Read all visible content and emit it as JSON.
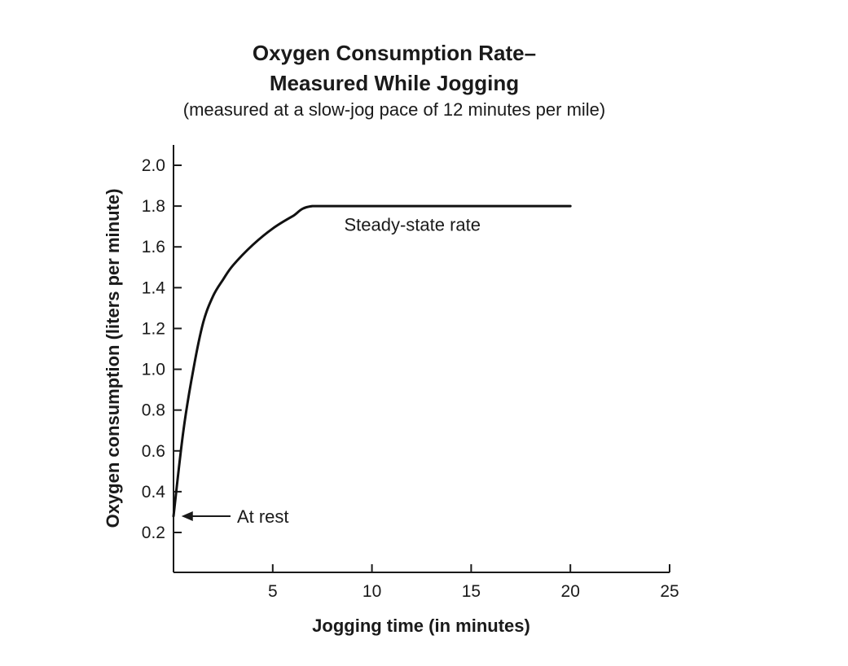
{
  "chart_data": {
    "type": "line",
    "title_line1": "Oxygen Consumption Rate–",
    "title_line2": "Measured While Jogging",
    "subtitle": "(measured at a slow-jog pace of 12 minutes per mile)",
    "xlabel": "Jogging time (in minutes)",
    "ylabel": "Oxygen consumption (liters per minute)",
    "xlim": [
      0,
      25
    ],
    "ylim": [
      0,
      2.1
    ],
    "x_ticks": [
      5,
      10,
      15,
      20,
      25
    ],
    "x_tick_labels": [
      "5",
      "10",
      "15",
      "20",
      "25"
    ],
    "y_ticks": [
      0.2,
      0.4,
      0.6,
      0.8,
      1.0,
      1.2,
      1.4,
      1.6,
      1.8,
      2.0
    ],
    "y_tick_labels": [
      "0.2",
      "0.4",
      "0.6",
      "0.8",
      "1.0",
      "1.2",
      "1.4",
      "1.6",
      "1.8",
      "2.0"
    ],
    "grid": false,
    "series": [
      {
        "name": "Oxygen consumption",
        "x": [
          0,
          0.5,
          1,
          1.5,
          2,
          2.5,
          3,
          4,
          5,
          6,
          7,
          10,
          15,
          20
        ],
        "y": [
          0.28,
          0.7,
          1.0,
          1.23,
          1.36,
          1.44,
          1.51,
          1.61,
          1.69,
          1.75,
          1.8,
          1.8,
          1.8,
          1.8
        ]
      }
    ],
    "annotations": [
      {
        "text": "Steady-state rate",
        "x": 8.6,
        "y": 1.71
      },
      {
        "text": "At rest",
        "x": 3.2,
        "y": 0.28,
        "arrow_to_x": 0.4,
        "arrow_to_y": 0.28
      }
    ]
  }
}
